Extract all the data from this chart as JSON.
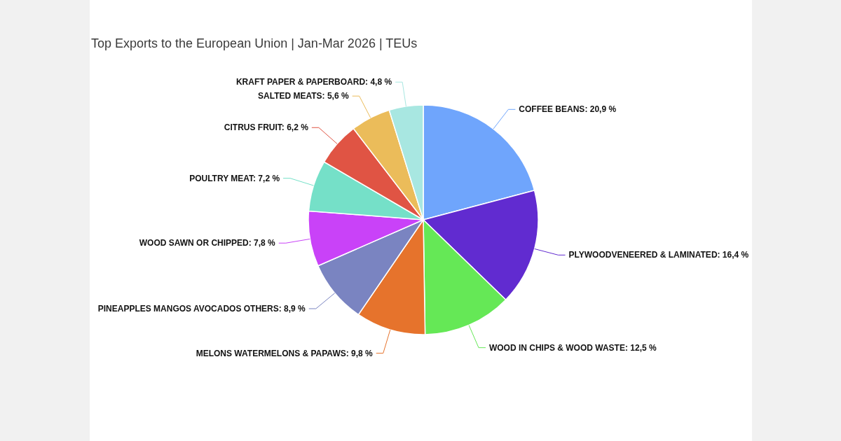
{
  "chart_data": {
    "type": "pie",
    "title": "Top Exports to the European Union | Jan-Mar 2026 | TEUs",
    "categories": [
      "COFFEE BEANS",
      "PLYWOODVENEERED & LAMINATED",
      "WOOD IN CHIPS & WOOD WASTE",
      "MELONS WATERMELONS & PAPAWS",
      "PINEAPPLES MANGOS AVOCADOS OTHERS",
      "WOOD SAWN OR CHIPPED",
      "POULTRY MEAT",
      "CITRUS FRUIT",
      "SALTED MEATS",
      "KRAFT PAPER & PAPERBOARD"
    ],
    "values": [
      20.9,
      16.4,
      12.5,
      9.8,
      8.9,
      7.8,
      7.2,
      6.2,
      5.6,
      4.8
    ],
    "value_labels": [
      "20,9 %",
      "16,4 %",
      "12,5 %",
      "9,8 %",
      "8,9 %",
      "7,8 %",
      "7,2 %",
      "6,2 %",
      "5,6 %",
      "4,8 %"
    ],
    "colors": [
      "#6fa5fc",
      "#612bd0",
      "#65e856",
      "#e6732c",
      "#7a84c1",
      "#c942f8",
      "#75e0c8",
      "#e05444",
      "#ebbc5a",
      "#a8e7e1"
    ]
  }
}
